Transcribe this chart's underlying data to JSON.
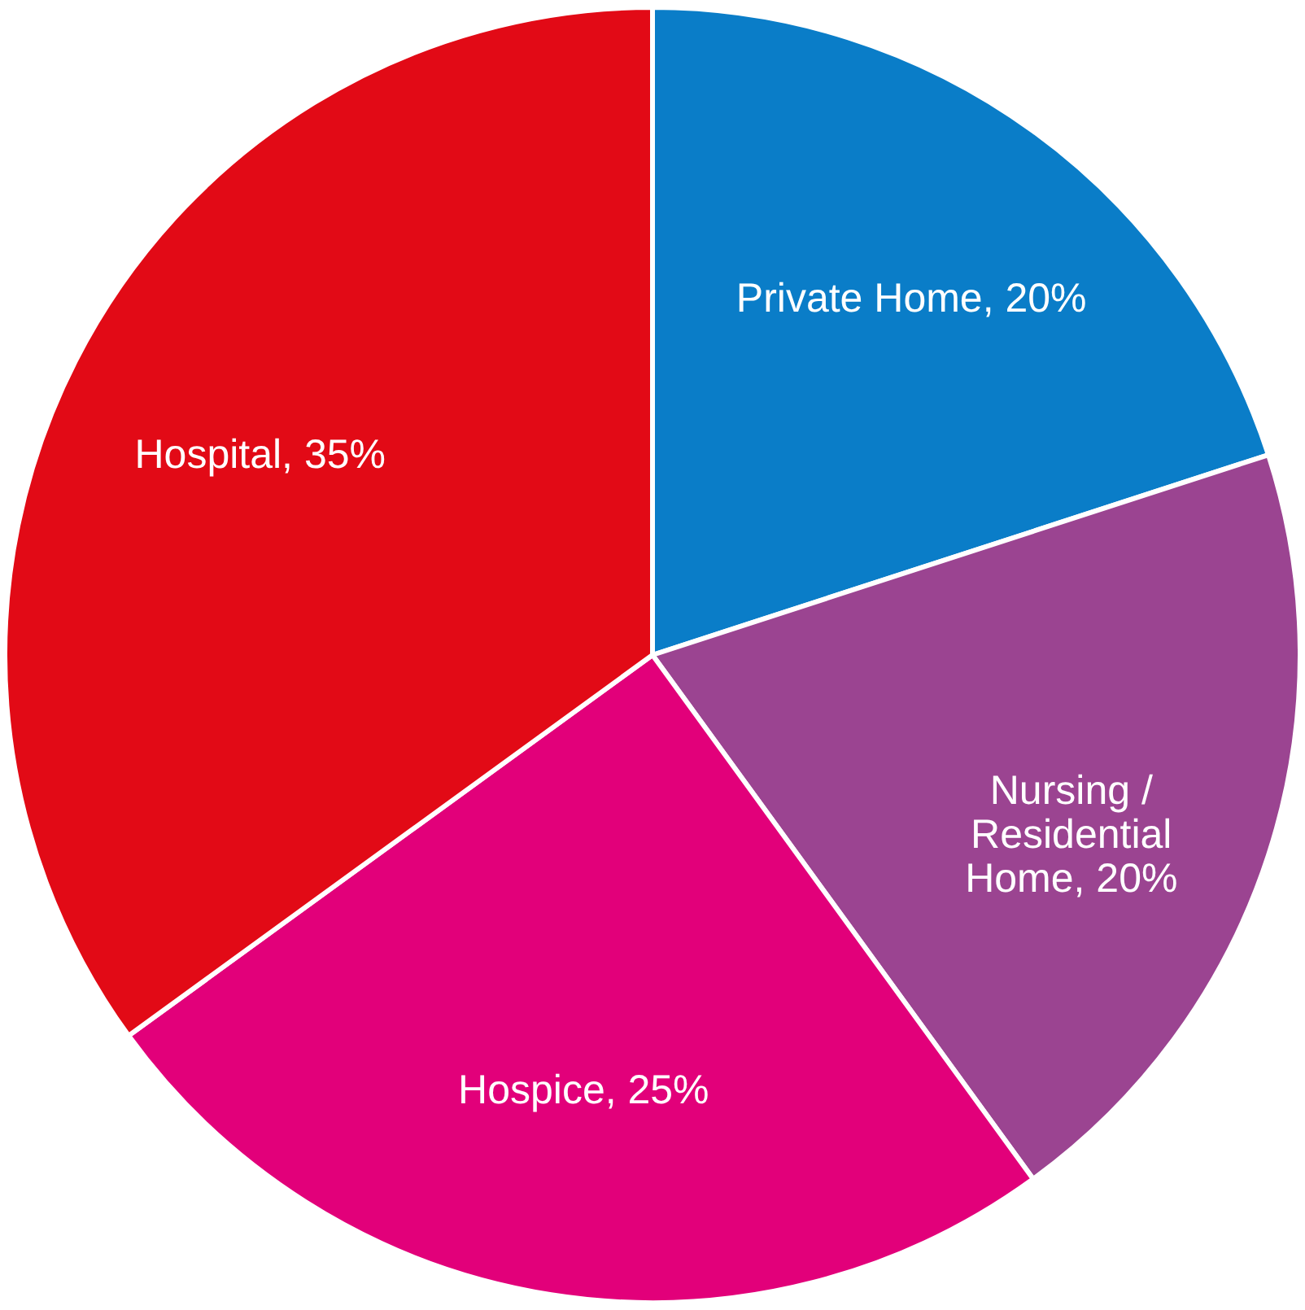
{
  "chart_data": {
    "type": "pie",
    "categories": [
      "Private Home",
      "Nursing / Residential Home",
      "Hospice",
      "Hospital"
    ],
    "values": [
      20,
      20,
      25,
      35
    ],
    "value_labels": [
      "20%",
      "20%",
      "25%",
      "35%"
    ],
    "colors": [
      "#0a7dc8",
      "#9b4491",
      "#e2007a",
      "#e20a16"
    ]
  }
}
